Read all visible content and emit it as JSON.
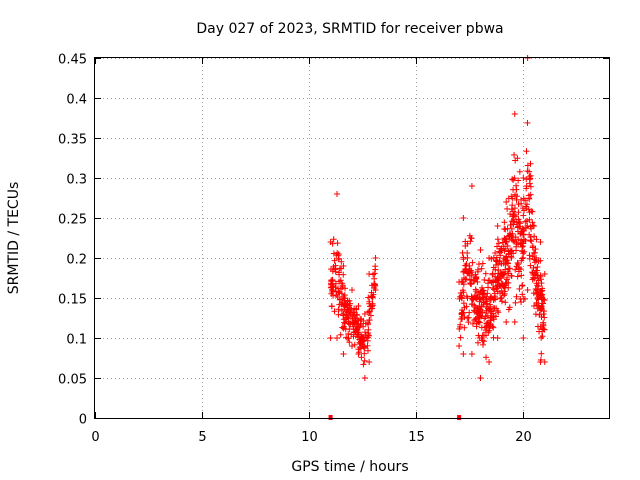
{
  "chart_data": {
    "type": "scatter",
    "title": "Day 027 of 2023, SRMTID for receiver pbwa",
    "xlabel": "GPS time / hours",
    "ylabel": "SRMTID / TECUs",
    "xlim": [
      0,
      24
    ],
    "ylim": [
      0,
      0.45
    ],
    "xticks": [
      0,
      5,
      10,
      15,
      20
    ],
    "xtick_labels": [
      "0",
      "5",
      "10",
      "15",
      "20"
    ],
    "yticks": [
      0,
      0.05,
      0.1,
      0.15,
      0.2,
      0.25,
      0.3,
      0.35,
      0.4,
      0.45
    ],
    "ytick_labels": [
      "0",
      "0.05",
      "0.1",
      "0.15",
      "0.2",
      "0.25",
      "0.3",
      "0.35",
      "0.4",
      "0.45"
    ],
    "grid": true,
    "marker": "+",
    "color": "#ff0000",
    "zero_points": [
      {
        "x": 11.0,
        "y": 0
      },
      {
        "x": 17.0,
        "y": 0
      }
    ],
    "clusters": [
      {
        "x_start": 11.0,
        "x_end": 13.1,
        "count": 260,
        "seed": 7,
        "envelope": [
          {
            "x": 11.0,
            "low": 0.1,
            "high": 0.22
          },
          {
            "x": 11.3,
            "low": 0.1,
            "high": 0.28
          },
          {
            "x": 11.6,
            "low": 0.08,
            "high": 0.19
          },
          {
            "x": 12.0,
            "low": 0.09,
            "high": 0.16
          },
          {
            "x": 12.3,
            "low": 0.08,
            "high": 0.14
          },
          {
            "x": 12.6,
            "low": 0.05,
            "high": 0.13
          },
          {
            "x": 12.8,
            "low": 0.07,
            "high": 0.18
          },
          {
            "x": 13.1,
            "low": 0.16,
            "high": 0.2
          }
        ]
      },
      {
        "x_start": 17.0,
        "x_end": 21.0,
        "count": 620,
        "seed": 13,
        "envelope": [
          {
            "x": 17.0,
            "low": 0.09,
            "high": 0.17
          },
          {
            "x": 17.2,
            "low": 0.08,
            "high": 0.25
          },
          {
            "x": 17.6,
            "low": 0.08,
            "high": 0.29
          },
          {
            "x": 18.0,
            "low": 0.05,
            "high": 0.21
          },
          {
            "x": 18.4,
            "low": 0.07,
            "high": 0.2
          },
          {
            "x": 18.8,
            "low": 0.1,
            "high": 0.24
          },
          {
            "x": 19.2,
            "low": 0.12,
            "high": 0.27
          },
          {
            "x": 19.6,
            "low": 0.12,
            "high": 0.38
          },
          {
            "x": 20.0,
            "low": 0.1,
            "high": 0.3
          },
          {
            "x": 20.2,
            "low": 0.16,
            "high": 0.45
          },
          {
            "x": 20.5,
            "low": 0.14,
            "high": 0.24
          },
          {
            "x": 20.8,
            "low": 0.07,
            "high": 0.22
          },
          {
            "x": 21.0,
            "low": 0.07,
            "high": 0.18
          }
        ]
      }
    ]
  }
}
